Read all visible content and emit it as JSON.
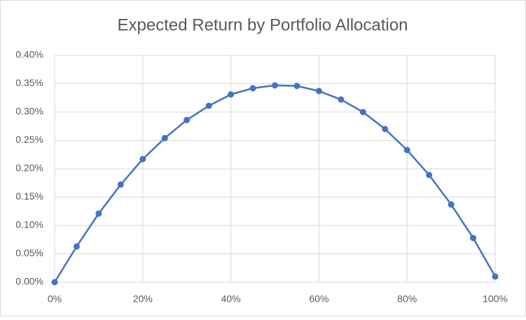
{
  "chart_data": {
    "type": "line",
    "title": "Expected Return by Portfolio Allocation",
    "x": [
      0,
      5,
      10,
      15,
      20,
      25,
      30,
      35,
      40,
      45,
      50,
      55,
      60,
      65,
      70,
      75,
      80,
      85,
      90,
      95,
      100
    ],
    "series": [
      {
        "color": "#4472c4",
        "values": [
          0,
          0.063,
          0.121,
          0.172,
          0.217,
          0.254,
          0.286,
          0.311,
          0.331,
          0.342,
          0.347,
          0.346,
          0.337,
          0.322,
          0.3,
          0.27,
          0.233,
          0.189,
          0.137,
          0.078,
          0.01
        ]
      }
    ],
    "xlim": [
      0,
      100
    ],
    "xticks": [
      {
        "value": 0,
        "label": "0%"
      },
      {
        "value": 20,
        "label": "20%"
      },
      {
        "value": 40,
        "label": "40%"
      },
      {
        "value": 60,
        "label": "60%"
      },
      {
        "value": 80,
        "label": "80%"
      },
      {
        "value": 100,
        "label": "100%"
      }
    ],
    "ylim": [
      0,
      0.4
    ],
    "yticks": [
      {
        "value": 0,
        "label": "0.00%"
      },
      {
        "value": 0.05,
        "label": "0.05%"
      },
      {
        "value": 0.1,
        "label": "0.10%"
      },
      {
        "value": 0.15,
        "label": "0.15%"
      },
      {
        "value": 0.2,
        "label": "0.20%"
      },
      {
        "value": 0.25,
        "label": "0.25%"
      },
      {
        "value": 0.3,
        "label": "0.30%"
      },
      {
        "value": 0.35,
        "label": "0.35%"
      },
      {
        "value": 0.4,
        "label": "0.40%"
      }
    ],
    "grid": true,
    "markers": true
  }
}
